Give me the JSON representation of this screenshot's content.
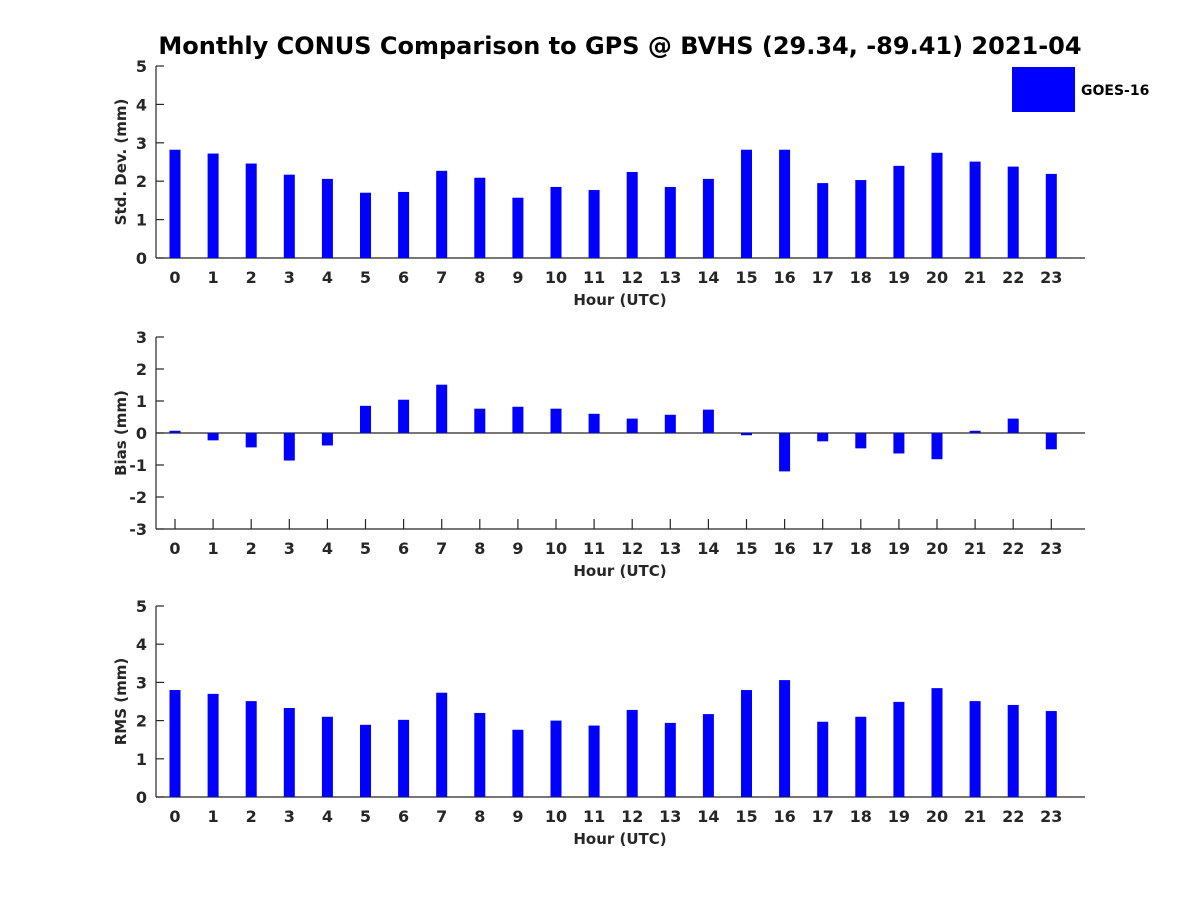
{
  "chart_data": {
    "title": "Monthly CONUS Comparison to GPS @ BVHS (29.34, -89.41) 2021-04",
    "legend": {
      "entries": [
        {
          "label": "GOES-16",
          "color": "#0000ff"
        }
      ],
      "placement": "top-right"
    },
    "bar_color": "#0000ff",
    "panels": [
      {
        "type": "bar",
        "ylabel": "Std. Dev. (mm)",
        "xlabel": "Hour (UTC)",
        "ylim": [
          0,
          5
        ],
        "yticks": [
          "0",
          "1",
          "2",
          "3",
          "4",
          "5"
        ],
        "categories": [
          "0",
          "1",
          "2",
          "3",
          "4",
          "5",
          "6",
          "7",
          "8",
          "9",
          "10",
          "11",
          "12",
          "13",
          "14",
          "15",
          "16",
          "17",
          "18",
          "19",
          "20",
          "21",
          "22",
          "23"
        ],
        "series": [
          {
            "name": "GOES-16",
            "values": [
              2.82,
              2.72,
              2.46,
              2.17,
              2.06,
              1.7,
              1.72,
              2.27,
              2.09,
              1.57,
              1.85,
              1.77,
              2.24,
              1.85,
              2.06,
              2.82,
              2.82,
              1.95,
              2.03,
              2.4,
              2.74,
              2.51,
              2.38,
              2.19
            ]
          }
        ]
      },
      {
        "type": "bar",
        "ylabel": "Bias (mm)",
        "xlabel": "Hour (UTC)",
        "ylim": [
          -3,
          3
        ],
        "yticks": [
          "-3",
          "-2",
          "-1",
          "0",
          "1",
          "2",
          "3"
        ],
        "categories": [
          "0",
          "1",
          "2",
          "3",
          "4",
          "5",
          "6",
          "7",
          "8",
          "9",
          "10",
          "11",
          "12",
          "13",
          "14",
          "15",
          "16",
          "17",
          "18",
          "19",
          "20",
          "21",
          "22",
          "23"
        ],
        "series": [
          {
            "name": "GOES-16",
            "values": [
              0.07,
              -0.23,
              -0.45,
              -0.86,
              -0.39,
              0.85,
              1.04,
              1.51,
              0.76,
              0.82,
              0.76,
              0.6,
              0.45,
              0.57,
              0.73,
              -0.07,
              -1.2,
              -0.26,
              -0.48,
              -0.64,
              -0.82,
              0.07,
              0.45,
              -0.51
            ]
          }
        ]
      },
      {
        "type": "bar",
        "ylabel": "RMS (mm)",
        "xlabel": "Hour (UTC)",
        "ylim": [
          0,
          5
        ],
        "yticks": [
          "0",
          "1",
          "2",
          "3",
          "4",
          "5"
        ],
        "categories": [
          "0",
          "1",
          "2",
          "3",
          "4",
          "5",
          "6",
          "7",
          "8",
          "9",
          "10",
          "11",
          "12",
          "13",
          "14",
          "15",
          "16",
          "17",
          "18",
          "19",
          "20",
          "21",
          "22",
          "23"
        ],
        "series": [
          {
            "name": "GOES-16",
            "values": [
              2.8,
              2.7,
              2.51,
              2.33,
              2.1,
              1.89,
              2.02,
              2.73,
              2.2,
              1.76,
              2.0,
              1.87,
              2.28,
              1.94,
              2.17,
              2.8,
              3.06,
              1.97,
              2.1,
              2.49,
              2.85,
              2.51,
              2.41,
              2.25
            ]
          }
        ]
      }
    ]
  }
}
